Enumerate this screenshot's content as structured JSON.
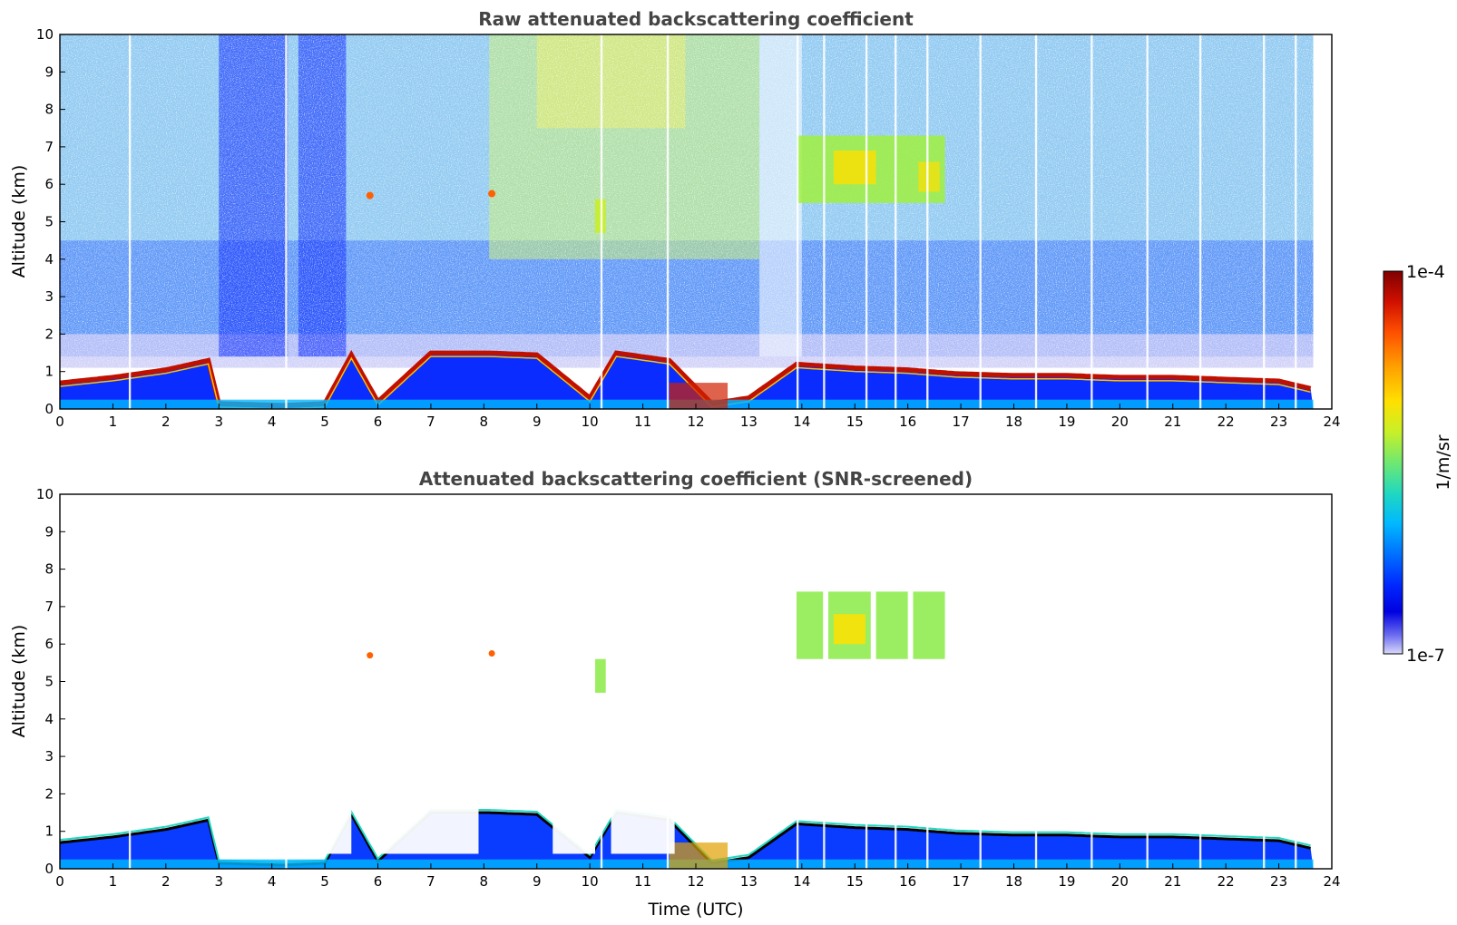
{
  "chart_data": [
    {
      "type": "heatmap",
      "title": "Raw attenuated backscattering coefficient",
      "xlabel": "",
      "ylabel": "Altitude (km)",
      "xlim": [
        0,
        24
      ],
      "ylim": [
        0,
        10
      ],
      "x_ticks": [
        "0",
        "1",
        "2",
        "3",
        "4",
        "5",
        "6",
        "7",
        "8",
        "9",
        "10",
        "11",
        "12",
        "13",
        "14",
        "15",
        "16",
        "17",
        "18",
        "19",
        "20",
        "21",
        "22",
        "23",
        "24"
      ],
      "y_ticks": [
        "0",
        "1",
        "2",
        "3",
        "4",
        "5",
        "6",
        "7",
        "8",
        "9",
        "10"
      ],
      "data_end_time": 23.65,
      "boundary_layer_top_km": [
        [
          0,
          0.7
        ],
        [
          1,
          0.85
        ],
        [
          2,
          1.05
        ],
        [
          2.8,
          1.3
        ],
        [
          3,
          0.15
        ],
        [
          4.2,
          0.1
        ],
        [
          5,
          0.15
        ],
        [
          5.5,
          1.45
        ],
        [
          6,
          0.2
        ],
        [
          7,
          1.5
        ],
        [
          8.1,
          1.5
        ],
        [
          9,
          1.45
        ],
        [
          10,
          0.3
        ],
        [
          10.5,
          1.5
        ],
        [
          11.5,
          1.3
        ],
        [
          12.3,
          0.15
        ],
        [
          13,
          0.3
        ],
        [
          13.9,
          1.2
        ],
        [
          15,
          1.1
        ],
        [
          16,
          1.05
        ],
        [
          16.9,
          0.95
        ],
        [
          18,
          0.9
        ],
        [
          19,
          0.9
        ],
        [
          20,
          0.85
        ],
        [
          21,
          0.85
        ],
        [
          22,
          0.8
        ],
        [
          23,
          0.75
        ],
        [
          23.6,
          0.55
        ]
      ],
      "features": [
        {
          "kind": "cirrus",
          "time_range": [
            13.9,
            16.7
          ],
          "altitude_range_km": [
            5.5,
            7.8
          ]
        },
        {
          "kind": "aerosol layer",
          "time_range": [
            10.1,
            10.3
          ],
          "altitude_range_km": [
            4.7,
            5.6
          ]
        },
        {
          "kind": "aerosol spot",
          "time": 5.85,
          "altitude_km": 5.7
        },
        {
          "kind": "aerosol spot",
          "time": 8.15,
          "altitude_km": 5.75
        }
      ]
    },
    {
      "type": "heatmap",
      "title": "Attenuated backscattering coefficient (SNR-screened)",
      "xlabel": "Time (UTC)",
      "ylabel": "Altitude (km)",
      "xlim": [
        0,
        24
      ],
      "ylim": [
        0,
        10
      ],
      "x_ticks": [
        "0",
        "1",
        "2",
        "3",
        "4",
        "5",
        "6",
        "7",
        "8",
        "9",
        "10",
        "11",
        "12",
        "13",
        "14",
        "15",
        "16",
        "17",
        "18",
        "19",
        "20",
        "21",
        "22",
        "23",
        "24"
      ],
      "y_ticks": [
        "0",
        "1",
        "2",
        "3",
        "4",
        "5",
        "6",
        "7",
        "8",
        "9",
        "10"
      ]
    }
  ],
  "colorbar": {
    "label": "1/m/sr",
    "max_label": "1e-4",
    "min_label": "1e-7",
    "colors": [
      "#7f0000",
      "#d01000",
      "#ff5000",
      "#ffa000",
      "#ffe000",
      "#c8f028",
      "#70e870",
      "#20d8c0",
      "#00b8ff",
      "#0070ff",
      "#0028ff",
      "#0000e0",
      "#6a6af0",
      "#c8c8f8"
    ]
  }
}
